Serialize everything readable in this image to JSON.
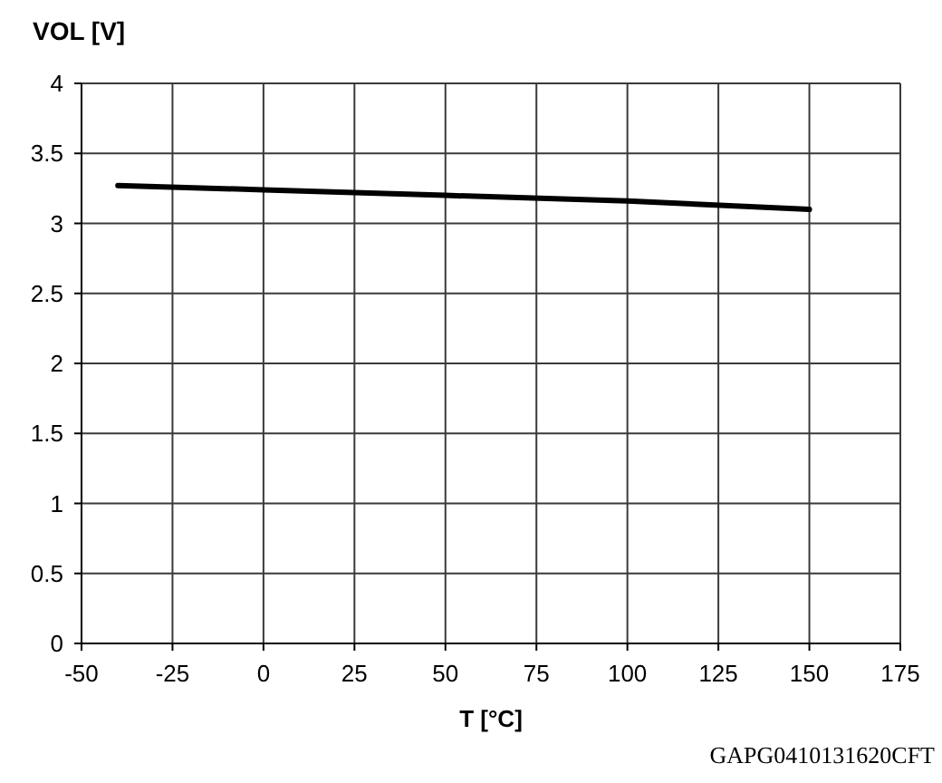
{
  "chart_data": {
    "type": "line",
    "xlabel": "T [°C]",
    "ylabel": "VOL [V]",
    "annotations": [
      "GAPG0410131620CFT"
    ],
    "x": [
      -40,
      0,
      50,
      100,
      150
    ],
    "series": [
      {
        "color": "#000000",
        "values": [
          3.27,
          3.24,
          3.2,
          3.16,
          3.1
        ]
      }
    ],
    "xlim": [
      -50,
      175
    ],
    "xticks": [
      -50,
      -25,
      0,
      25,
      50,
      75,
      100,
      125,
      150,
      175
    ],
    "ylim": [
      0,
      4
    ],
    "yticks": [
      0,
      0.5,
      1,
      1.5,
      2,
      2.5,
      3,
      3.5,
      4
    ],
    "grid": true
  }
}
